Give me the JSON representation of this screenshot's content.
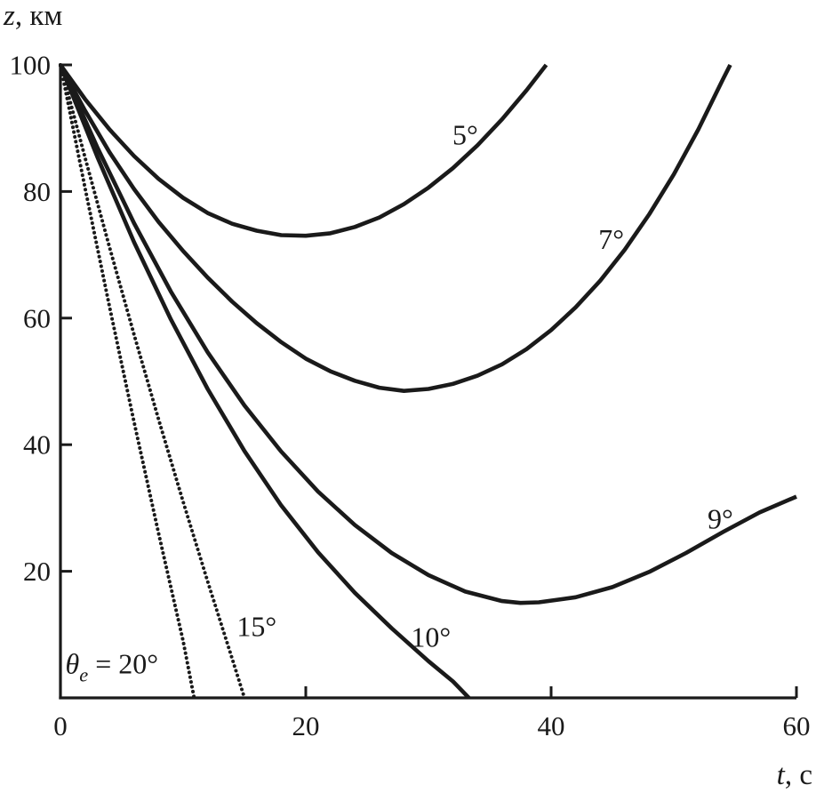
{
  "figure": {
    "y_axis_title": {
      "variable": "z",
      "unit": ", км"
    },
    "x_axis_title": {
      "variable": "t",
      "unit": ", с"
    }
  },
  "chart_data": {
    "type": "line",
    "title": "",
    "xlabel": "t, с",
    "ylabel": "z, км",
    "xlim": [
      0,
      60
    ],
    "ylim": [
      0,
      100
    ],
    "xticks": [
      0,
      20,
      40,
      60
    ],
    "yticks": [
      20,
      40,
      60,
      80,
      100
    ],
    "grid": false,
    "legend_position": "inline-labels",
    "line_color": "#1a1a1a",
    "series": [
      {
        "name": "5°",
        "entry_angle_deg": 5,
        "style": "solid",
        "points": [
          [
            0,
            100
          ],
          [
            2,
            94.6
          ],
          [
            4,
            89.8
          ],
          [
            6,
            85.6
          ],
          [
            8,
            82.0
          ],
          [
            10,
            79.0
          ],
          [
            12,
            76.6
          ],
          [
            14,
            74.9
          ],
          [
            16,
            73.8
          ],
          [
            18,
            73.1
          ],
          [
            20,
            73.0
          ],
          [
            22,
            73.4
          ],
          [
            24,
            74.4
          ],
          [
            26,
            75.9
          ],
          [
            28,
            78.0
          ],
          [
            30,
            80.6
          ],
          [
            32,
            83.7
          ],
          [
            34,
            87.3
          ],
          [
            36,
            91.4
          ],
          [
            38,
            96.0
          ],
          [
            39.6,
            100
          ]
        ]
      },
      {
        "name": "7°",
        "entry_angle_deg": 7,
        "style": "solid",
        "points": [
          [
            0,
            100
          ],
          [
            2,
            92.8
          ],
          [
            4,
            86.2
          ],
          [
            6,
            80.4
          ],
          [
            8,
            75.2
          ],
          [
            10,
            70.6
          ],
          [
            12,
            66.4
          ],
          [
            14,
            62.6
          ],
          [
            16,
            59.2
          ],
          [
            18,
            56.2
          ],
          [
            20,
            53.6
          ],
          [
            22,
            51.6
          ],
          [
            24,
            50.1
          ],
          [
            26,
            49.0
          ],
          [
            28,
            48.5
          ],
          [
            30,
            48.8
          ],
          [
            32,
            49.6
          ],
          [
            34,
            50.9
          ],
          [
            36,
            52.7
          ],
          [
            38,
            55.1
          ],
          [
            40,
            58.1
          ],
          [
            42,
            61.7
          ],
          [
            44,
            65.9
          ],
          [
            46,
            70.8
          ],
          [
            48,
            76.4
          ],
          [
            50,
            82.7
          ],
          [
            52,
            89.8
          ],
          [
            54,
            97.7
          ],
          [
            54.6,
            100
          ]
        ]
      },
      {
        "name": "9°",
        "entry_angle_deg": 9,
        "style": "solid",
        "points": [
          [
            0,
            100
          ],
          [
            3,
            87.0
          ],
          [
            6,
            75.0
          ],
          [
            9,
            64.2
          ],
          [
            12,
            54.6
          ],
          [
            15,
            46.2
          ],
          [
            18,
            38.9
          ],
          [
            21,
            32.6
          ],
          [
            24,
            27.3
          ],
          [
            27,
            22.9
          ],
          [
            30,
            19.4
          ],
          [
            33,
            16.8
          ],
          [
            36,
            15.3
          ],
          [
            37.5,
            15.0
          ],
          [
            39,
            15.1
          ],
          [
            42,
            15.9
          ],
          [
            45,
            17.5
          ],
          [
            48,
            19.9
          ],
          [
            51,
            22.9
          ],
          [
            54,
            26.2
          ],
          [
            57,
            29.3
          ],
          [
            60,
            31.8
          ]
        ]
      },
      {
        "name": "10°",
        "entry_angle_deg": 10,
        "style": "solid",
        "points": [
          [
            0,
            100
          ],
          [
            3,
            85.5
          ],
          [
            6,
            72.0
          ],
          [
            9,
            59.8
          ],
          [
            12,
            48.8
          ],
          [
            15,
            39.0
          ],
          [
            18,
            30.4
          ],
          [
            21,
            23.0
          ],
          [
            24,
            16.6
          ],
          [
            27,
            11.0
          ],
          [
            30,
            5.8
          ],
          [
            32,
            2.6
          ],
          [
            33.3,
            0
          ]
        ]
      },
      {
        "name": "15°",
        "entry_angle_deg": 15,
        "style": "dotted",
        "points": [
          [
            0,
            100
          ],
          [
            2,
            85.4
          ],
          [
            4,
            71.2
          ],
          [
            6,
            57.4
          ],
          [
            8,
            44.0
          ],
          [
            10,
            31.0
          ],
          [
            12,
            18.4
          ],
          [
            14,
            6.2
          ],
          [
            15.0,
            0
          ]
        ]
      },
      {
        "name": "20°",
        "entry_angle_deg": 20,
        "style": "dotted",
        "points": [
          [
            0,
            100
          ],
          [
            2,
            80.6
          ],
          [
            4,
            61.8
          ],
          [
            6,
            43.6
          ],
          [
            8,
            26.0
          ],
          [
            10,
            9.0
          ],
          [
            10.9,
            0
          ]
        ]
      }
    ],
    "annotations": [
      {
        "label": "5°",
        "t": 33.0,
        "z": 89.0,
        "anchor": "middle"
      },
      {
        "label": "7°",
        "t": 44.9,
        "z": 72.5,
        "anchor": "middle"
      },
      {
        "label": "9°",
        "t": 53.8,
        "z": 28.3,
        "anchor": "middle"
      },
      {
        "label": "10°",
        "t": 30.2,
        "z": 9.6,
        "anchor": "middle"
      },
      {
        "label": "15°",
        "t": 16.0,
        "z": 11.3,
        "anchor": "middle"
      },
      {
        "label_parts": [
          {
            "text": "θ",
            "italic": true
          },
          {
            "text": "e",
            "italic": true,
            "sub": true
          },
          {
            "text": " = 20°",
            "italic": false
          }
        ],
        "t": 0.4,
        "z": 5.4,
        "anchor": "start"
      }
    ]
  }
}
